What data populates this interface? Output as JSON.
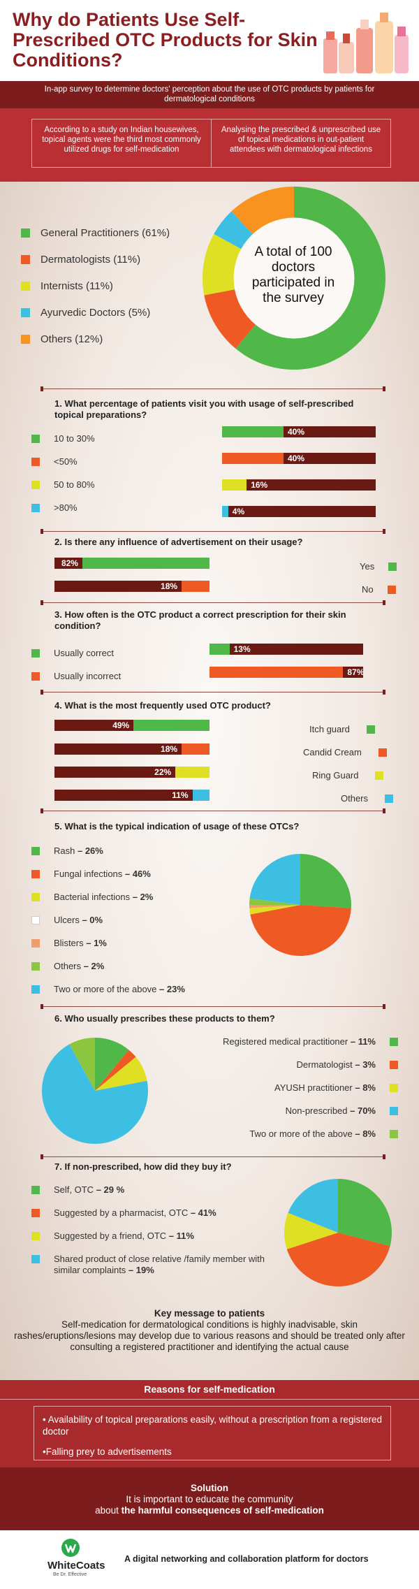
{
  "header": {
    "title": "Why do Patients Use Self-Prescribed OTC Products for Skin Conditions?",
    "subtitle": "In-app survey to determine doctors' perception about the use of OTC products by patients for dermatological conditions",
    "study_left": "According to a study on Indian housewives, topical agents were the third most commonly utilized drugs for self-medication",
    "study_right": "Analysing the prescribed & unprescribed use of topical medications in out-patient attendees with dermatological infections"
  },
  "donut_center": "A total of 100 doctors participated in the survey",
  "colors": {
    "green": "#4fb848",
    "orange": "#ef5a24",
    "yellow": "#dfe023",
    "blue": "#3dbfe4",
    "amber": "#f7931e",
    "maroon": "#6b1a13",
    "white": "#ffffff",
    "salmon": "#f29c6b",
    "lightgreen": "#8cc63f"
  },
  "chart_data": [
    {
      "type": "pie",
      "categories": [
        "General Practitioners (61%)",
        "Dermatologists (11%)",
        "Internists (11%)",
        "Ayurvedic Doctors (5%)",
        "Others (12%)"
      ],
      "values": [
        61,
        11,
        11,
        5,
        12
      ],
      "colors": [
        "#4fb848",
        "#ef5a24",
        "#dfe023",
        "#3dbfe4",
        "#f7931e"
      ]
    },
    {
      "type": "bar",
      "title": "1. What percentage of patients visit you with usage of self-prescribed topical preparations?",
      "categories": [
        "10 to 30%",
        "<50%",
        "50 to 80%",
        ">80%"
      ],
      "values": [
        40,
        40,
        16,
        4
      ],
      "value_labels": [
        "40%",
        "40%",
        "16%",
        "4%"
      ],
      "colors": [
        "#4fb848",
        "#ef5a24",
        "#dfe023",
        "#3dbfe4"
      ]
    },
    {
      "type": "bar",
      "title": "2. Is there any influence of advertisement on their usage?",
      "categories": [
        "Yes",
        "No"
      ],
      "values": [
        82,
        18
      ],
      "value_labels": [
        "82%",
        "18%"
      ],
      "colors": [
        "#4fb848",
        "#ef5a24"
      ]
    },
    {
      "type": "bar",
      "title": "3. How often is the OTC product a correct prescription for their skin condition?",
      "categories": [
        "Usually correct",
        "Usually incorrect"
      ],
      "values": [
        13,
        87
      ],
      "value_labels": [
        "13%",
        "87%"
      ],
      "colors": [
        "#4fb848",
        "#ef5a24"
      ]
    },
    {
      "type": "bar",
      "title": "4. What is the most frequently used OTC product?",
      "categories": [
        "Itch guard",
        "Candid Cream",
        "Ring Guard",
        "Others"
      ],
      "values": [
        49,
        18,
        22,
        11
      ],
      "value_labels": [
        "49%",
        "18%",
        "22%",
        "11%"
      ],
      "colors": [
        "#4fb848",
        "#ef5a24",
        "#dfe023",
        "#3dbfe4"
      ]
    },
    {
      "type": "pie",
      "title": "5. What is the typical indication of usage of these OTCs?",
      "categories": [
        "Rash",
        "Fungal infections",
        "Bacterial infections",
        "Ulcers",
        "Blisters",
        "Others",
        "Two or more of the above"
      ],
      "values": [
        26,
        46,
        2,
        0,
        1,
        2,
        23
      ],
      "value_labels": [
        "26%",
        "46%",
        "2%",
        "0%",
        "1%",
        "2%",
        "23%"
      ],
      "colors": [
        "#4fb848",
        "#ef5a24",
        "#dfe023",
        "#ffffff",
        "#f29c6b",
        "#8cc63f",
        "#3dbfe4"
      ]
    },
    {
      "type": "pie",
      "title": "6. Who usually prescribes these products to them?",
      "categories": [
        "Registered medical practitioner",
        "Dermatologist",
        "AYUSH practitioner",
        "Non-prescribed",
        "Two or more of the above"
      ],
      "values": [
        11,
        3,
        8,
        70,
        8
      ],
      "value_labels": [
        "11%",
        "3%",
        "8%",
        "70%",
        "8%"
      ],
      "colors": [
        "#4fb848",
        "#ef5a24",
        "#dfe023",
        "#3dbfe4",
        "#8cc63f"
      ]
    },
    {
      "type": "pie",
      "title": "7. If non-prescribed, how did they buy it?",
      "categories": [
        "Self, OTC",
        "Suggested by a pharmacist, OTC",
        "Suggested by a friend, OTC",
        "Shared product of close relative /family member with similar complaints"
      ],
      "values": [
        29,
        41,
        11,
        19
      ],
      "value_labels": [
        "29 %",
        "41%",
        "11%",
        "19%"
      ],
      "colors": [
        "#4fb848",
        "#ef5a24",
        "#dfe023",
        "#3dbfe4"
      ]
    }
  ],
  "key_message": {
    "title": "Key message to patients",
    "body": "Self-medication for dermatological conditions is highly inadvisable, skin rashes/eruptions/lesions may develop due to various reasons and should be treated only after consulting a registered practitioner and identifying the actual cause"
  },
  "reasons": {
    "title": "Reasons for self-medication",
    "items": [
      "• Availability of topical preparations easily, without a prescription from a registered doctor",
      "•Falling prey to advertisements"
    ]
  },
  "solution": {
    "title": "Solution",
    "line1": "It is important to educate the community",
    "line2_prefix": "about ",
    "line2_bold": "the harmful consequences of self-medication"
  },
  "footer": {
    "logo": "WhiteCoats",
    "logo_tagline": "Be Dr. Effective",
    "tagline": "A digital networking and collaboration platform for doctors"
  }
}
